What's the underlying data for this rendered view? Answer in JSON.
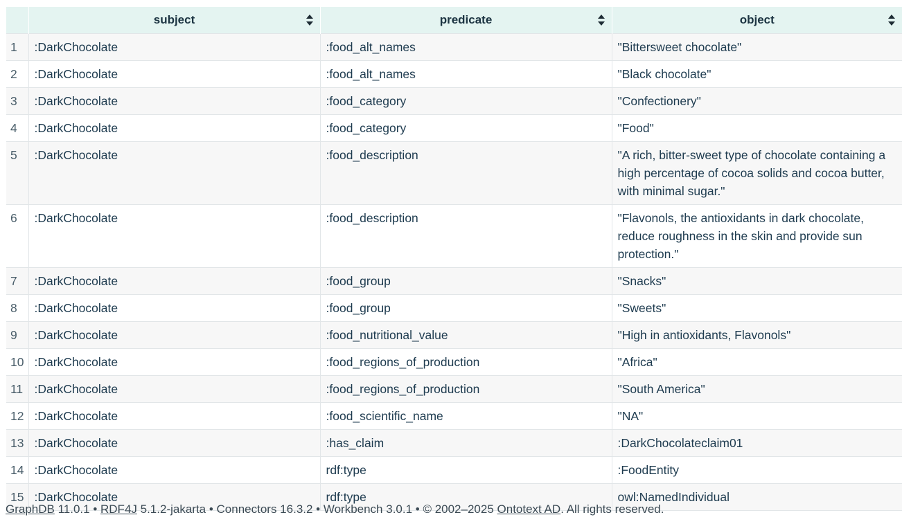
{
  "table": {
    "columns": [
      {
        "label": "subject"
      },
      {
        "label": "predicate"
      },
      {
        "label": "object"
      }
    ],
    "rows": [
      {
        "index": "1",
        "subject": ":DarkChocolate",
        "predicate": ":food_alt_names",
        "object": "\"Bittersweet chocolate\""
      },
      {
        "index": "2",
        "subject": ":DarkChocolate",
        "predicate": ":food_alt_names",
        "object": "\"Black chocolate\""
      },
      {
        "index": "3",
        "subject": ":DarkChocolate",
        "predicate": ":food_category",
        "object": "\"Confectionery\""
      },
      {
        "index": "4",
        "subject": ":DarkChocolate",
        "predicate": ":food_category",
        "object": "\"Food\""
      },
      {
        "index": "5",
        "subject": ":DarkChocolate",
        "predicate": ":food_description",
        "object": "\"A rich, bitter-sweet type of chocolate containing a high percentage of cocoa solids and cocoa butter, with minimal sugar.\""
      },
      {
        "index": "6",
        "subject": ":DarkChocolate",
        "predicate": ":food_description",
        "object": "\"Flavonols, the antioxidants in dark chocolate, reduce roughness in the skin and provide sun protection.\""
      },
      {
        "index": "7",
        "subject": ":DarkChocolate",
        "predicate": ":food_group",
        "object": "\"Snacks\""
      },
      {
        "index": "8",
        "subject": ":DarkChocolate",
        "predicate": ":food_group",
        "object": "\"Sweets\""
      },
      {
        "index": "9",
        "subject": ":DarkChocolate",
        "predicate": ":food_nutritional_value",
        "object": "\"High in antioxidants, Flavonols\""
      },
      {
        "index": "10",
        "subject": ":DarkChocolate",
        "predicate": ":food_regions_of_production",
        "object": "\"Africa\""
      },
      {
        "index": "11",
        "subject": ":DarkChocolate",
        "predicate": ":food_regions_of_production",
        "object": "\"South America\""
      },
      {
        "index": "12",
        "subject": ":DarkChocolate",
        "predicate": ":food_scientific_name",
        "object": "\"NA\""
      },
      {
        "index": "13",
        "subject": ":DarkChocolate",
        "predicate": ":has_claim",
        "object": ":DarkChocolateclaim01"
      },
      {
        "index": "14",
        "subject": ":DarkChocolate",
        "predicate": "rdf:type",
        "object": ":FoodEntity"
      },
      {
        "index": "15",
        "subject": ":DarkChocolate",
        "predicate": "rdf:type",
        "object": "owl:NamedIndividual"
      }
    ]
  },
  "footer": {
    "graphdb_link": "GraphDB",
    "graphdb_version": " 11.0.1 • ",
    "rdf4j_link": "RDF4J",
    "rdf4j_rest": " 5.1.2-jakarta • Connectors 16.3.2 • Workbench 3.0.1 • © 2002–2025 ",
    "ontotext_link": "Ontotext AD",
    "rights": ". All rights reserved."
  },
  "icons": {
    "sort": "sort-icon"
  }
}
